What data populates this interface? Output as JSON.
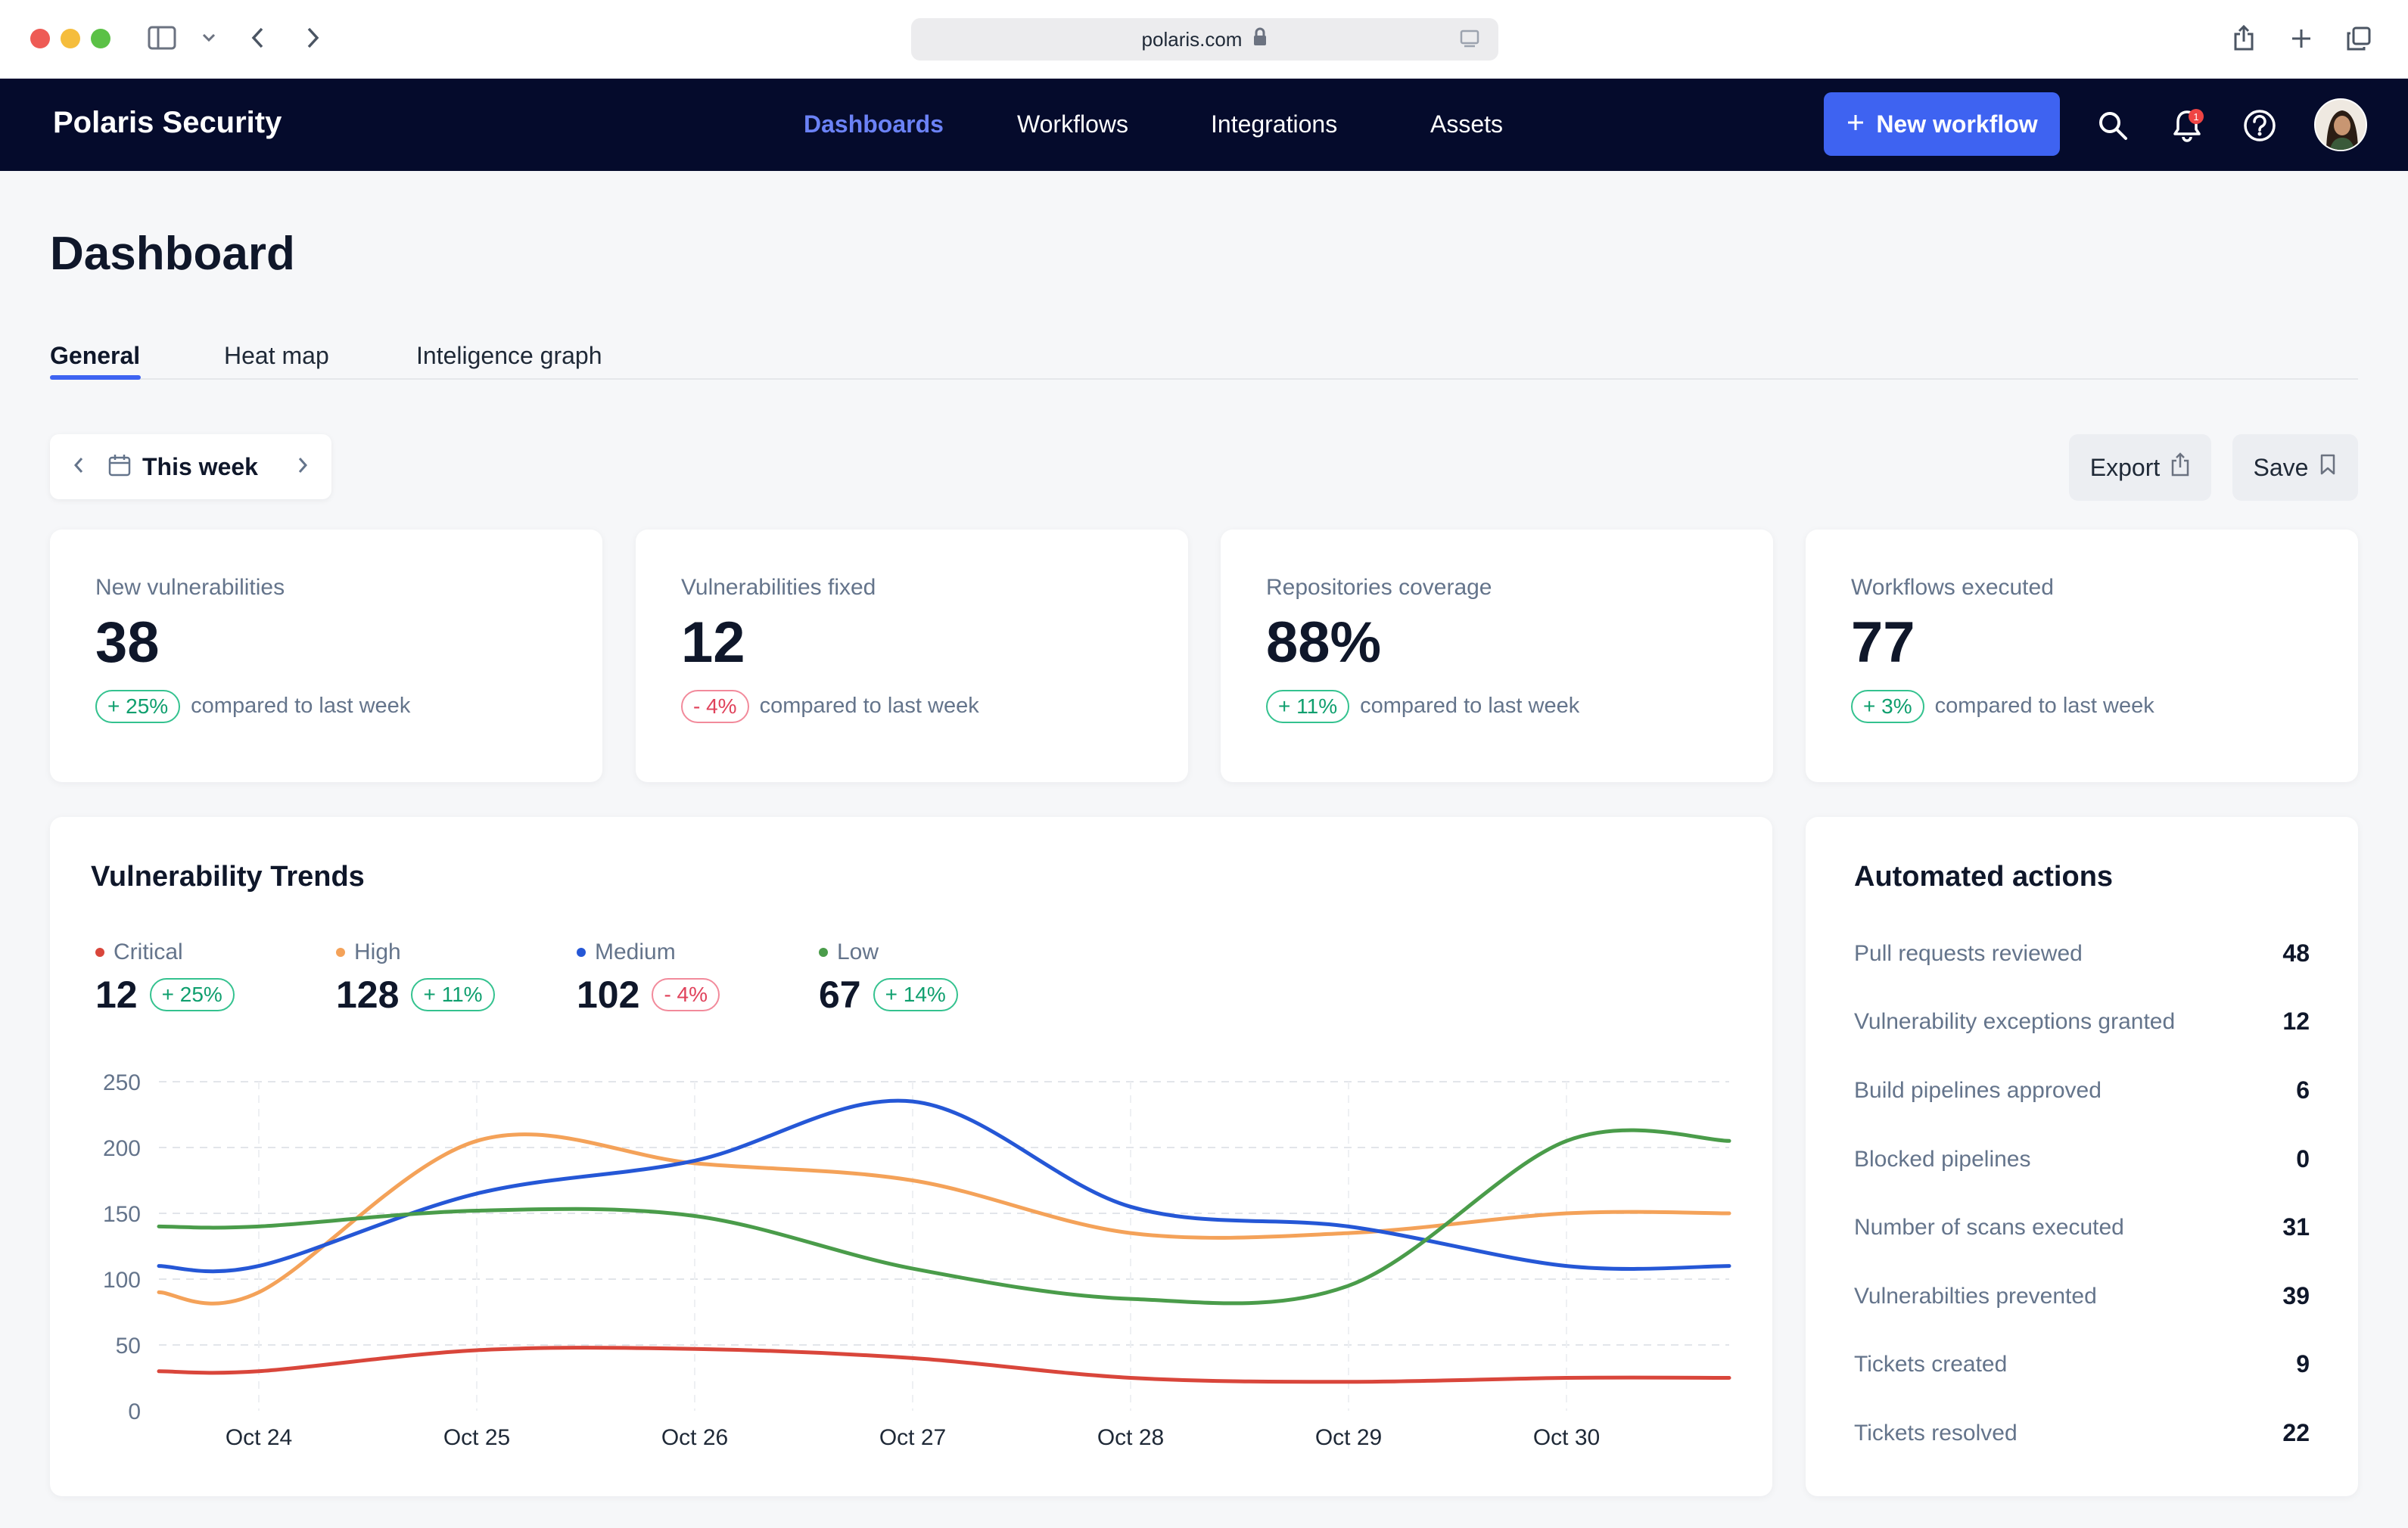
{
  "browser": {
    "url": "polaris.com"
  },
  "nav": {
    "brand": "Polaris Security",
    "links": [
      "Dashboards",
      "Workflows",
      "Integrations",
      "Assets"
    ],
    "active": 0,
    "new_button": "New workflow",
    "notification_count": "1"
  },
  "page": {
    "title": "Dashboard",
    "tabs": [
      "General",
      "Heat map",
      "Inteligence graph"
    ],
    "period": "This week",
    "export_label": "Export",
    "save_label": "Save"
  },
  "stats": [
    {
      "label": "New vulnerabilities",
      "value": "38",
      "change": "+ 25%",
      "direction": "up",
      "note": "compared to last week"
    },
    {
      "label": "Vulnerabilities fixed",
      "value": "12",
      "change": "- 4%",
      "direction": "down",
      "note": "compared to last week"
    },
    {
      "label": "Repositories coverage",
      "value": "88%",
      "change": "+ 11%",
      "direction": "up",
      "note": "compared to last week"
    },
    {
      "label": "Workflows executed",
      "value": "77",
      "change": "+ 3%",
      "direction": "up",
      "note": "compared to last week"
    }
  ],
  "trends": {
    "title": "Vulnerability Trends",
    "legend": [
      {
        "name": "Critical",
        "value": "12",
        "change": "+ 25%",
        "direction": "up",
        "color": "#d9463b"
      },
      {
        "name": "High",
        "value": "128",
        "change": "+ 11%",
        "direction": "up",
        "color": "#f4a259"
      },
      {
        "name": "Medium",
        "value": "102",
        "change": "- 4%",
        "direction": "down",
        "color": "#2557d6"
      },
      {
        "name": "Low",
        "value": "67",
        "change": "+ 14%",
        "direction": "up",
        "color": "#4a9c4a"
      }
    ]
  },
  "chart_data": {
    "type": "line",
    "x": [
      "Oct 24",
      "Oct 25",
      "Oct 26",
      "Oct 27",
      "Oct 28",
      "Oct 29",
      "Oct 30"
    ],
    "y_ticks": [
      0,
      50,
      100,
      150,
      200,
      250
    ],
    "ylim": [
      0,
      250
    ],
    "grid": true,
    "series": [
      {
        "name": "Critical",
        "color": "#d9463b",
        "values": [
          30,
          46,
          47,
          40,
          25,
          22,
          25
        ]
      },
      {
        "name": "High",
        "color": "#f4a259",
        "values": [
          90,
          205,
          188,
          175,
          135,
          135,
          150
        ]
      },
      {
        "name": "Medium",
        "color": "#2557d6",
        "values": [
          110,
          165,
          190,
          235,
          155,
          140,
          110
        ]
      },
      {
        "name": "Low",
        "color": "#4a9c4a",
        "values": [
          140,
          152,
          148,
          108,
          85,
          95,
          205
        ]
      }
    ]
  },
  "actions": {
    "title": "Automated actions",
    "items": [
      {
        "name": "Pull requests reviewed",
        "value": "48"
      },
      {
        "name": "Vulnerability exceptions granted",
        "value": "12"
      },
      {
        "name": "Build pipelines approved",
        "value": "6"
      },
      {
        "name": "Blocked pipelines",
        "value": "0"
      },
      {
        "name": "Number of scans executed",
        "value": "31"
      },
      {
        "name": "Vulnerabilties prevented",
        "value": "39"
      },
      {
        "name": "Tickets created",
        "value": "9"
      },
      {
        "name": "Tickets resolved",
        "value": "22"
      }
    ]
  }
}
